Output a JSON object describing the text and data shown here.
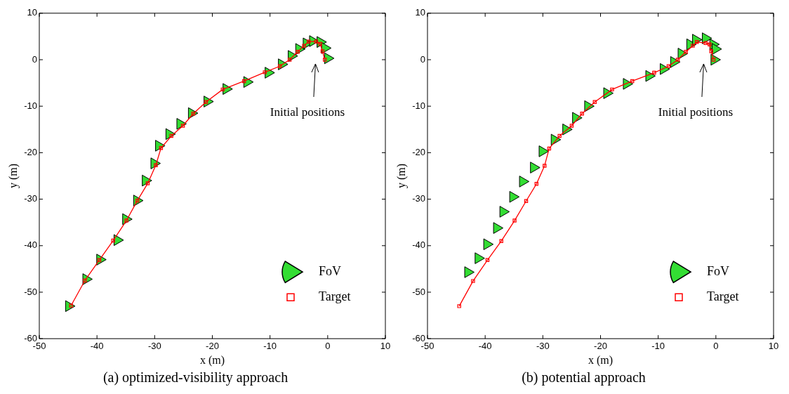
{
  "chart_data": [
    {
      "type": "scatter",
      "title": "(a) optimized-visibility approach",
      "xlabel": "x (m)",
      "ylabel": "y (m)",
      "xlim": [
        -50,
        10
      ],
      "xticks": [
        -50,
        -40,
        -30,
        -20,
        -10,
        0,
        10
      ],
      "ylim": [
        -60,
        10
      ],
      "yticks": [
        -60,
        -50,
        -40,
        -30,
        -20,
        -10,
        0,
        10
      ],
      "grid": false,
      "legend": "bottom right",
      "annotations": [
        "Initial positions"
      ],
      "series": [
        {
          "name": "FoV",
          "type": "scatter",
          "marker": "triangle",
          "color": "#33dd33",
          "x": [
            -44.9,
            -41.9,
            -39.5,
            -36.5,
            -35,
            -33.1,
            -31.6,
            -30.1,
            -29.3,
            -27.5,
            -25.6,
            -23.6,
            -20.9,
            -17.6,
            -14,
            -10.3,
            -8,
            -6.3,
            -5,
            -3.7,
            -2.6,
            -1.3,
            -0.5,
            0
          ],
          "values": [
            -53,
            -47.2,
            -43,
            -38.8,
            -34.3,
            -30.3,
            -26,
            -22.3,
            -18.5,
            -16,
            -13.8,
            -11.5,
            -9,
            -6.3,
            -4.8,
            -2.8,
            -1,
            0.8,
            2.3,
            3.5,
            4,
            3.8,
            2.5,
            0.3
          ]
        },
        {
          "name": "Target",
          "type": "line",
          "marker": "square",
          "color": "#ff0000",
          "x": [
            -44.5,
            -42.1,
            -39.6,
            -37.2,
            -34.9,
            -33,
            -31.2,
            -29.8,
            -28.9,
            -27.1,
            -25.1,
            -23.3,
            -21.1,
            -18.2,
            -14.5,
            -10.9,
            -8.3,
            -6.6,
            -5.2,
            -4.1,
            -3.3,
            -2,
            -1.3,
            -0.9,
            -0.5
          ],
          "values": [
            -52.9,
            -47.5,
            -43.1,
            -38.9,
            -34.6,
            -30.3,
            -26.6,
            -22.7,
            -19,
            -16.4,
            -14.2,
            -11.6,
            -9.1,
            -6.4,
            -4.6,
            -2.7,
            -1.4,
            0,
            1.7,
            3,
            3.9,
            3.9,
            3.4,
            1.8,
            0
          ]
        }
      ]
    },
    {
      "type": "scatter",
      "title": "(b) potential approach",
      "xlabel": "x (m)",
      "ylabel": "y (m)",
      "xlim": [
        -50,
        10
      ],
      "xticks": [
        -50,
        -40,
        -30,
        -20,
        -10,
        0,
        10
      ],
      "ylim": [
        -60,
        10
      ],
      "yticks": [
        -60,
        -50,
        -40,
        -30,
        -20,
        -10,
        0,
        10
      ],
      "grid": false,
      "legend": "bottom right",
      "annotations": [
        "Initial positions"
      ],
      "series": [
        {
          "name": "FoV",
          "type": "scatter",
          "marker": "triangle",
          "color": "#33dd33",
          "x": [
            -43,
            -41.2,
            -39.7,
            -38,
            -36.9,
            -35.2,
            -33.5,
            -31.6,
            -30.1,
            -28,
            -26,
            -24.3,
            -22.2,
            -18.9,
            -15.5,
            -11.6,
            -9.1,
            -7.3,
            -6,
            -4.5,
            -3.5,
            -1.8,
            -0.5,
            -0.1,
            -0.3
          ],
          "values": [
            -45.7,
            -42.7,
            -39.7,
            -36.2,
            -32.7,
            -29.5,
            -26.2,
            -23.2,
            -19.7,
            -17.2,
            -15,
            -12.5,
            -10,
            -7.2,
            -5.2,
            -3.5,
            -2,
            -0.5,
            1.3,
            3.3,
            4.3,
            4.6,
            3.3,
            2.3,
            0
          ]
        },
        {
          "name": "Target",
          "type": "line",
          "marker": "square",
          "color": "#ff0000",
          "x": [
            -44.5,
            -42.1,
            -39.6,
            -37.2,
            -34.9,
            -32.9,
            -31.1,
            -29.7,
            -28.9,
            -27.1,
            -25,
            -23.2,
            -21,
            -18,
            -14.5,
            -10.7,
            -8.2,
            -6.6,
            -5.2,
            -4,
            -3.3,
            -1.8,
            -1.1,
            -0.8,
            -0.4
          ],
          "values": [
            -53,
            -47.6,
            -43.1,
            -39,
            -34.6,
            -30.4,
            -26.7,
            -22.8,
            -19.1,
            -16.4,
            -14.2,
            -11.6,
            -9.1,
            -6.4,
            -4.6,
            -2.8,
            -1.4,
            0,
            1.7,
            3,
            3.8,
            3.6,
            3.3,
            1.8,
            0
          ]
        }
      ]
    }
  ]
}
